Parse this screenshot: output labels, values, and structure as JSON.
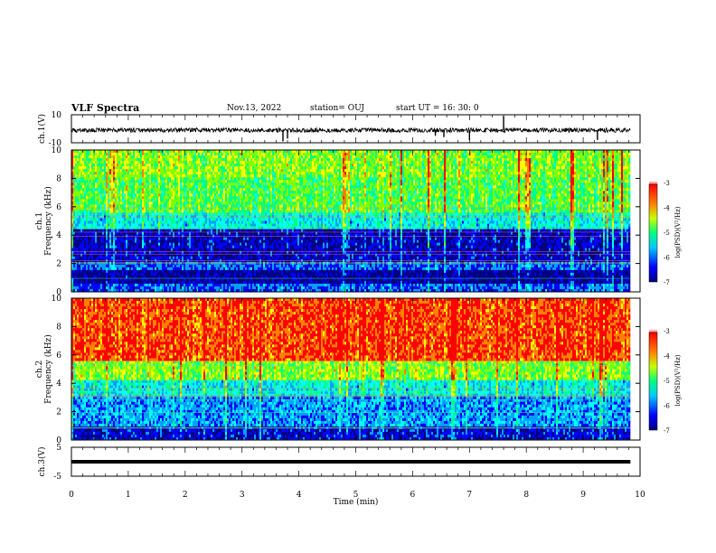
{
  "header": {
    "title": "VLF Spectra",
    "date": "Nov.13, 2022",
    "station": "station= OUJ",
    "start": "start  UT =   16: 30: 0"
  },
  "colors": {
    "scale": [
      "#000080",
      "#0000ff",
      "#00a0ff",
      "#00ffff",
      "#00ff80",
      "#80ff00",
      "#ffff00",
      "#ff8000",
      "#ff0000",
      "#ff0000"
    ]
  },
  "chart_data": [
    {
      "type": "line",
      "name": "ch1-waveform",
      "ylabel": "ch.1(V)",
      "ylim": [
        -10,
        10
      ],
      "yticks": [
        "10",
        "-10"
      ],
      "xlim": [
        0,
        10
      ],
      "baseline": -1,
      "spikes": [
        {
          "x": 3.72,
          "y": -9
        },
        {
          "x": 3.8,
          "y": -7
        },
        {
          "x": 6.4,
          "y": -5
        },
        {
          "x": 6.55,
          "y": -6
        },
        {
          "x": 7.0,
          "y": -8
        },
        {
          "x": 7.6,
          "y": 9
        },
        {
          "x": 9.25,
          "y": -8
        }
      ]
    },
    {
      "type": "heatmap",
      "name": "ch1-spectrogram",
      "ylabel": "ch.1\nFrequency  (kHz)",
      "ylim": [
        0,
        10
      ],
      "yticks": [
        "0",
        "2",
        "4",
        "6",
        "8",
        "10"
      ],
      "xlim": [
        0,
        9.83
      ],
      "colorbar": {
        "label": "log(PSD)(V²/Hz)",
        "range": [
          -7,
          -3
        ],
        "ticks": [
          "-3",
          "-4",
          "-5",
          "-6",
          "-7"
        ]
      },
      "bands": [
        {
          "from": 0,
          "to": 0.5,
          "level": 0.2
        },
        {
          "from": 0.5,
          "to": 1.5,
          "level": 0.05
        },
        {
          "from": 1.5,
          "to": 2.2,
          "level": 0.2
        },
        {
          "from": 2.2,
          "to": 4.4,
          "level": 0.1
        },
        {
          "from": 4.4,
          "to": 5.5,
          "level": 0.35
        },
        {
          "from": 5.5,
          "to": 8.0,
          "level": 0.5
        },
        {
          "from": 8.0,
          "to": 10,
          "level": 0.55
        }
      ]
    },
    {
      "type": "heatmap",
      "name": "ch2-spectrogram",
      "ylabel": "ch.2\nFrequency  (kHz)",
      "ylim": [
        0,
        10
      ],
      "yticks": [
        "0",
        "2",
        "4",
        "6",
        "8",
        "10"
      ],
      "xlim": [
        0,
        9.83
      ],
      "colorbar": {
        "label": "log(PSD)(V²/Hz)",
        "range": [
          -7,
          -3
        ],
        "ticks": [
          "-3",
          "-4",
          "-5",
          "-6",
          "-7"
        ]
      },
      "bands": [
        {
          "from": 0,
          "to": 1.0,
          "level": 0.12
        },
        {
          "from": 1.0,
          "to": 3.0,
          "level": 0.25
        },
        {
          "from": 3.0,
          "to": 4.2,
          "level": 0.35
        },
        {
          "from": 4.2,
          "to": 5.5,
          "level": 0.55
        },
        {
          "from": 5.5,
          "to": 10,
          "level": 0.8
        }
      ]
    },
    {
      "type": "line",
      "name": "ch3-waveform",
      "ylabel": "ch.3(V)",
      "ylim": [
        -5,
        5
      ],
      "yticks": [
        "5",
        "-5"
      ],
      "xlim": [
        0,
        9.83
      ],
      "level": 0,
      "xlabel": "Time  (min)",
      "xticks": [
        "0",
        "1",
        "2",
        "3",
        "4",
        "5",
        "6",
        "7",
        "8",
        "9",
        "10"
      ]
    }
  ]
}
